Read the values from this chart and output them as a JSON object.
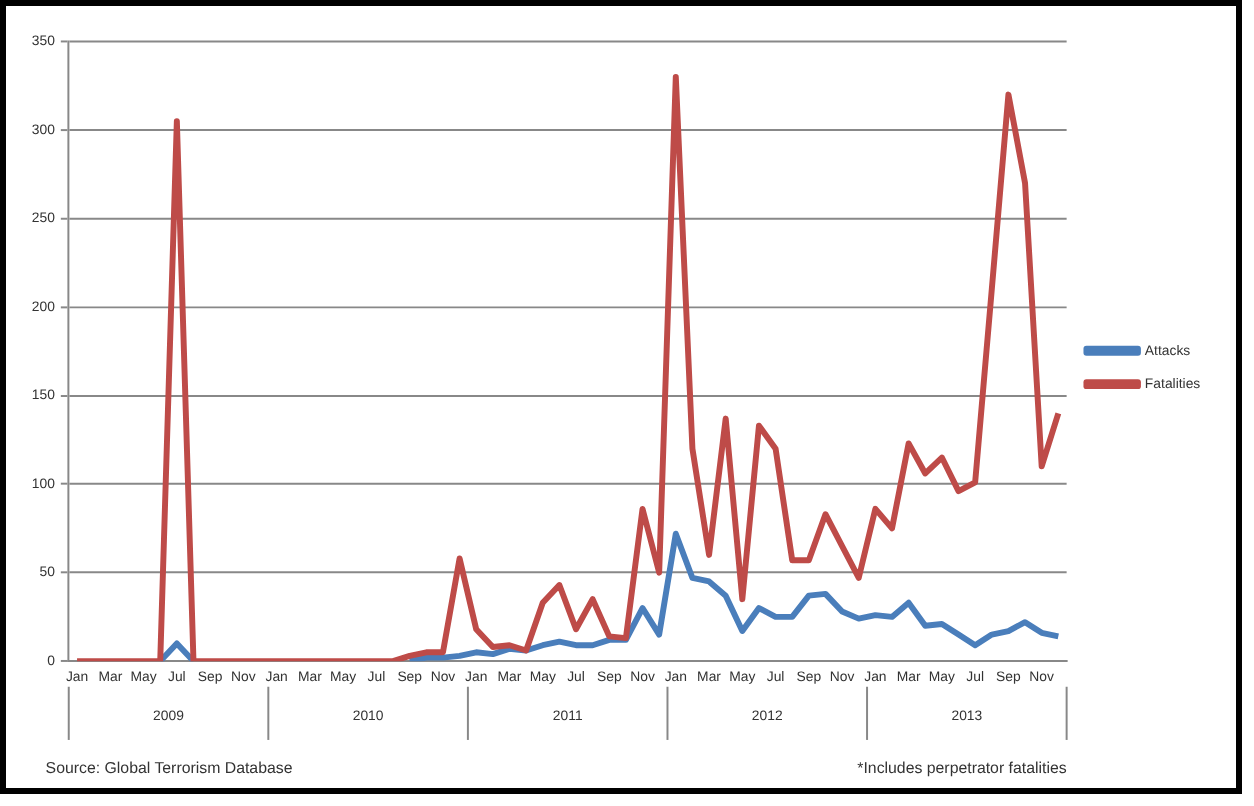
{
  "chart_data": {
    "type": "line",
    "categories": [
      "Jan",
      null,
      "Mar",
      null,
      "May",
      null,
      "Jul",
      null,
      "Sep",
      null,
      "Nov",
      null,
      "Jan",
      null,
      "Mar",
      null,
      "May",
      null,
      "Jul",
      null,
      "Sep",
      null,
      "Nov",
      null,
      "Jan",
      null,
      "Mar",
      null,
      "May",
      null,
      "Jul",
      null,
      "Sep",
      null,
      "Nov",
      null,
      "Jan",
      null,
      "Mar",
      null,
      "May",
      null,
      "Jul",
      null,
      "Sep",
      null,
      "Nov",
      null,
      "Jan",
      null,
      "Mar",
      null,
      "May",
      null,
      "Jul",
      null,
      "Sep",
      null,
      "Nov",
      null
    ],
    "series": [
      {
        "name": "Attacks",
        "color": "#4a7ebb",
        "values": [
          null,
          null,
          null,
          null,
          null,
          0,
          10,
          0,
          null,
          null,
          null,
          null,
          null,
          null,
          null,
          null,
          null,
          null,
          null,
          null,
          0,
          2,
          2,
          3,
          5,
          4,
          7,
          6,
          9,
          11,
          9,
          9,
          12,
          12,
          30,
          15,
          72,
          47,
          45,
          37,
          17,
          30,
          25,
          25,
          37,
          38,
          28,
          24,
          26,
          25,
          33,
          20,
          21,
          15,
          9,
          15,
          17,
          22,
          16,
          14
        ]
      },
      {
        "name": "Fatalities",
        "color": "#be4b48",
        "values": [
          0,
          0,
          0,
          0,
          0,
          0,
          305,
          0,
          0,
          0,
          0,
          0,
          0,
          0,
          0,
          0,
          0,
          0,
          0,
          0,
          3,
          5,
          5,
          58,
          18,
          8,
          9,
          6,
          33,
          43,
          18,
          35,
          14,
          13,
          86,
          50,
          330,
          120,
          60,
          137,
          35,
          133,
          120,
          57,
          57,
          83,
          65,
          47,
          86,
          75,
          123,
          106,
          115,
          96,
          101,
          210,
          320,
          270,
          110,
          140
        ]
      }
    ],
    "ylim": [
      0,
      350
    ],
    "yticks": [
      0,
      50,
      100,
      150,
      200,
      250,
      300,
      350
    ],
    "grid": "y",
    "legend": "right",
    "marker": "none",
    "line_style": "solid",
    "annotations": [
      "2009",
      "2010",
      "2011",
      "2012",
      "2013",
      "Source: Global Terrorism Database",
      "*Includes perpetrator fatalities"
    ]
  }
}
